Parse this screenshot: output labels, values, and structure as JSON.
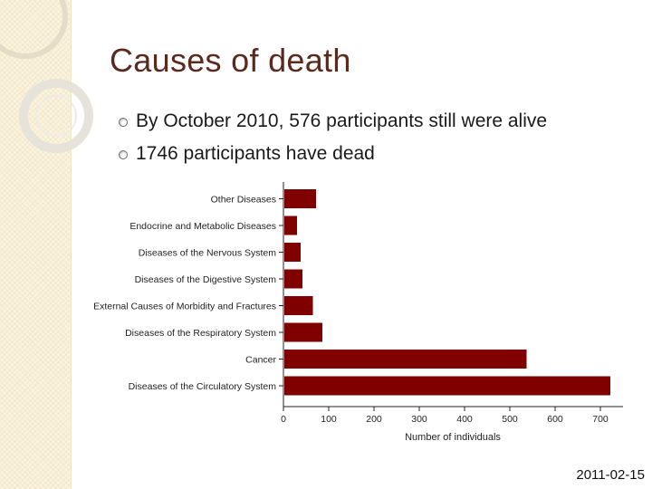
{
  "slide": {
    "title": "Causes of death",
    "bullets": [
      "By October 2010, 576 participants still were alive",
      "1746 participants have dead"
    ],
    "date": "2011-02-15"
  },
  "colors": {
    "title": "#5b2a1e",
    "bar": "#800000",
    "side_strip": "#fbf3dc"
  },
  "chart_data": {
    "type": "bar",
    "orientation": "horizontal",
    "categories": [
      "Other Diseases",
      "Endocrine and Metabolic Diseases",
      "Diseases of the Nervous System",
      "Diseases of the Digestive System",
      "External Causes of Morbidity and Fractures",
      "Diseases of the Respiratory System",
      "Cancer",
      "Diseases of the Circulatory System"
    ],
    "values": [
      70,
      28,
      36,
      40,
      63,
      84,
      535,
      720
    ],
    "xlabel": "Number of individuals",
    "ylabel": "",
    "xlim": [
      0,
      750
    ],
    "xticks": [
      0,
      100,
      200,
      300,
      400,
      500,
      600,
      700
    ],
    "grid": false,
    "bar_color": "#800000"
  }
}
